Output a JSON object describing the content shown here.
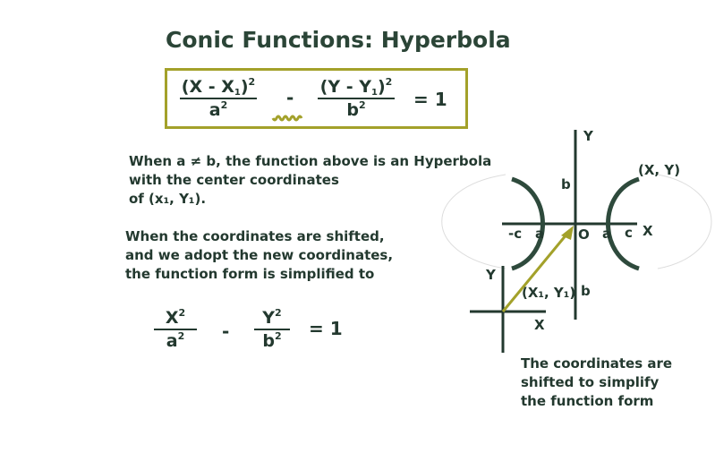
{
  "title": "Conic Functions: Hyperbola",
  "equation_general": {
    "term1_numerator": "(X - X₁)²",
    "term1_denominator": "a²",
    "minus": "-",
    "term2_numerator": "(Y - Y₁)²",
    "term2_denominator": "b²",
    "equals_one": "= 1"
  },
  "paragraph1": {
    "line1": "When a ≠ b, the function above  is an Hyperbola",
    "line2": "with the center coordinates",
    "line3": "of (x₁, Y₁)."
  },
  "paragraph2": {
    "line1": "When the coordinates are shifted,",
    "line2": "and we adopt the new coordinates,",
    "line3": "the function form is simplified to"
  },
  "equation_simplified": {
    "term1_numerator": "X²",
    "term1_denominator": "a²",
    "minus": "-",
    "term2_numerator": "Y²",
    "term2_denominator": "b²",
    "equals_one": "= 1"
  },
  "diagram": {
    "y_axis_label": "Y",
    "x_axis_label": "X",
    "origin_label": "O",
    "point_label": "(X, Y)",
    "b_upper": "b",
    "b_lower": "b",
    "neg_c": "-c",
    "neg_a": "a",
    "pos_a": "a",
    "pos_c": "c",
    "shifted_y_label": "Y",
    "shifted_x_label": "X",
    "center_label": "(X₁, Y₁)",
    "colors": {
      "axis": "#23392f",
      "arrow": "#a3a12a",
      "curve": "#2e4a3c",
      "guide": "#dddddd"
    }
  },
  "caption": {
    "line1": "The coordinates are",
    "line2": "shifted to simplify",
    "line3": "the function form"
  }
}
